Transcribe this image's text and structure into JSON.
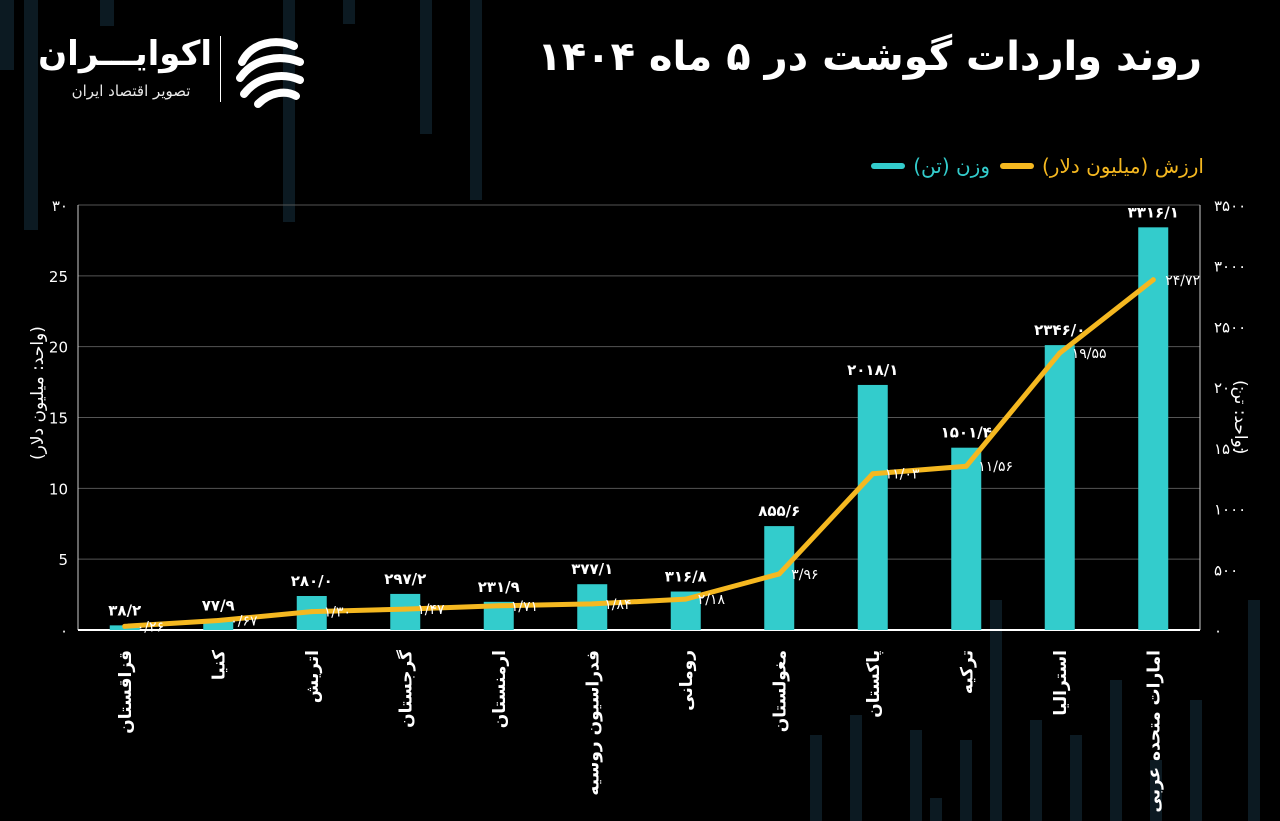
{
  "title": "روند واردات گوشت در ۵ ماه ۱۴۰۴",
  "logo": {
    "name": "اکوایـــران",
    "subtitle": "تصویر اقتصاد ایران"
  },
  "colors": {
    "bar": "#33cccc",
    "line": "#f5b820",
    "background": "#000000",
    "grid": "#555555"
  },
  "chart_data": {
    "type": "bar",
    "categories": [
      "قزاقستان",
      "کنیا",
      "اتریش",
      "گرجستان",
      "ارمنستان",
      "فدراسیون روسیه",
      "رومانی",
      "مغولستان",
      "پاکستان",
      "ترکیه",
      "استرالیا",
      "امارات متحده عربی"
    ],
    "series": [
      {
        "name": "وزن (تن)",
        "type": "bar",
        "axis": "right",
        "values": [
          38.2,
          77.9,
          280.0,
          297.2,
          231.9,
          377.1,
          316.8,
          855.6,
          2018.1,
          1501.4,
          2346.0,
          3316.1
        ],
        "labels": [
          "۳۸/۲",
          "۷۷/۹",
          "۲۸۰/۰",
          "۲۹۷/۲",
          "۲۳۱/۹",
          "۳۷۷/۱",
          "۳۱۶/۸",
          "۸۵۵/۶",
          "۲۰۱۸/۱",
          "۱۵۰۱/۴",
          "۲۳۴۶/۰",
          "۳۳۱۶/۱"
        ]
      },
      {
        "name": "ارزش (میلیون دلار)",
        "type": "line",
        "axis": "left",
        "values": [
          0.26,
          0.67,
          1.3,
          1.47,
          1.71,
          1.84,
          2.18,
          3.96,
          11.03,
          11.56,
          19.55,
          24.72
        ],
        "labels": [
          "۰/۲۶",
          "۰/۶۷",
          "۱/۳۰",
          "۱/۴۷",
          "۱/۷۱",
          "۱/۸۴",
          "۲/۱۸",
          "۳/۹۶",
          "۱۱/۰۳",
          "۱۱/۵۶",
          "۱۹/۵۵",
          "۲۴/۷۲"
        ]
      }
    ],
    "left_axis": {
      "label": "(واحد: میلیون دلار)",
      "range": [
        0,
        30
      ],
      "ticks": [
        0,
        5,
        10,
        15,
        20,
        25,
        30
      ],
      "tick_labels": [
        "۰",
        "5",
        "10",
        "15",
        "20",
        "25",
        "۳۰"
      ]
    },
    "right_axis": {
      "label": "(واحد: تن)",
      "range": [
        0,
        3500
      ],
      "ticks": [
        0,
        500,
        1000,
        1500,
        2000,
        2500,
        3000,
        3500
      ],
      "tick_labels": [
        "۰",
        "۵۰۰",
        "۱۰۰۰",
        "۱۵۰۰",
        "۲۰۰۰",
        "۲۵۰۰",
        "۳۰۰۰",
        "۳۵۰۰"
      ]
    },
    "grid": true,
    "legend": "top-right"
  }
}
